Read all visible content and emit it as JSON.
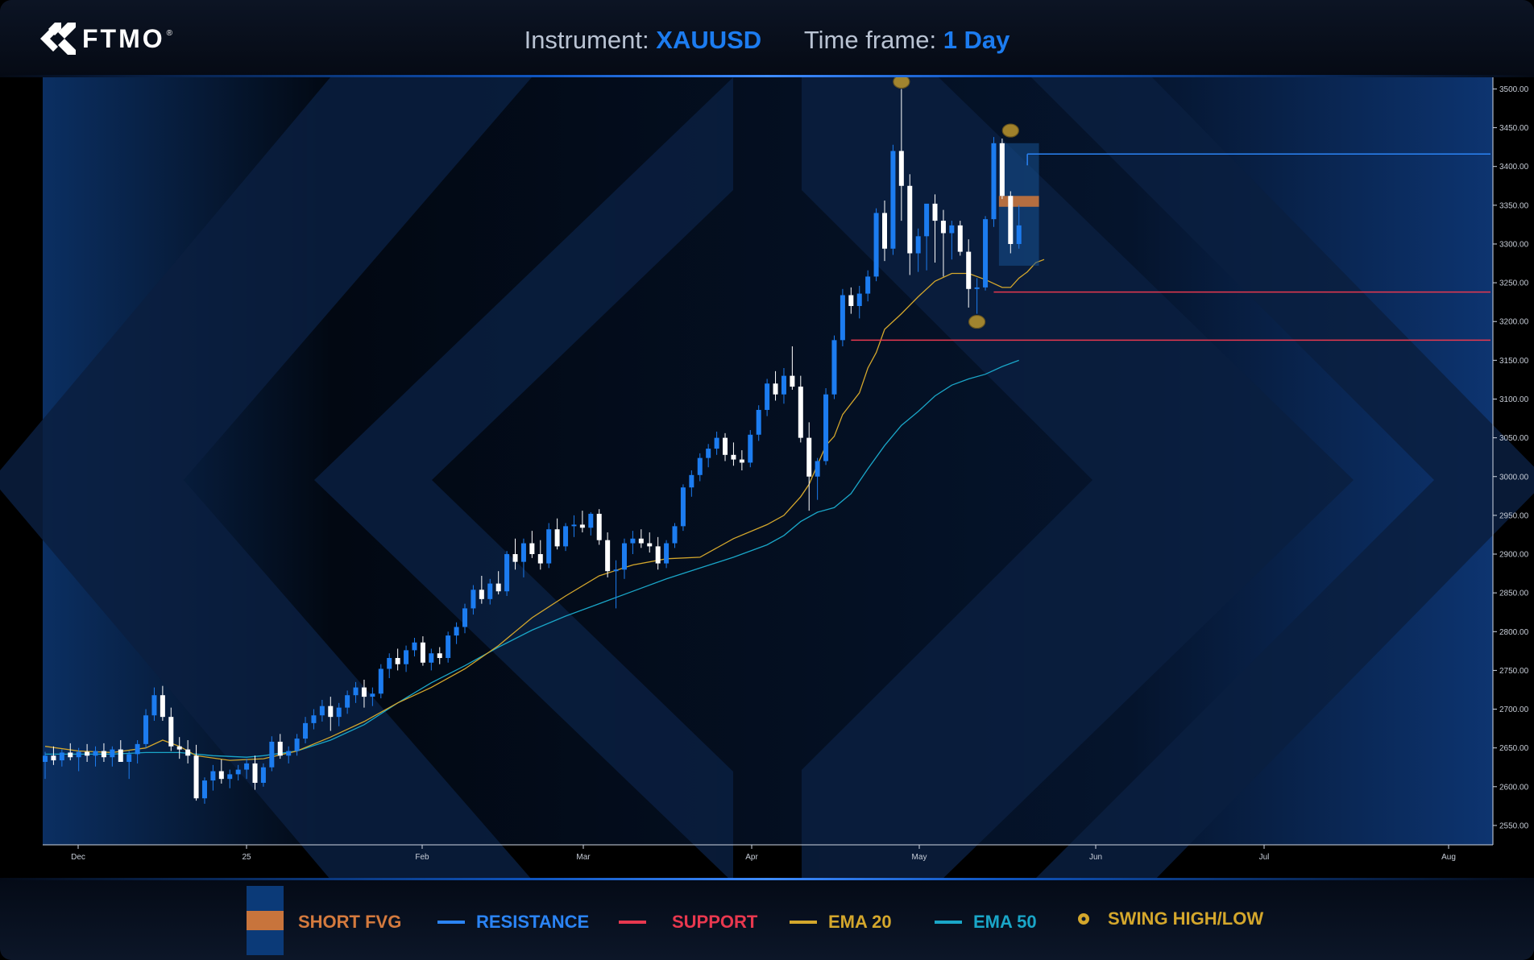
{
  "header": {
    "logo_text": "FTMO",
    "logo_reg": "®",
    "instrument_label": "Instrument:",
    "instrument_value": "XAUUSD",
    "timeframe_label": "Time frame:",
    "timeframe_value": "1 Day"
  },
  "legend": {
    "short_fvg": "SHORT FVG",
    "resistance": "RESISTANCE",
    "support": "SUPPORT",
    "ema20": "EMA 20",
    "ema50": "EMA 50",
    "swing": "SWING HIGH/LOW"
  },
  "colors": {
    "bull": "#1c7cf0",
    "bear": "#ffffff",
    "resistance": "#2b84f5",
    "support": "#e8384f",
    "ema20": "#d4a72c",
    "ema50": "#1aa6c8",
    "swing": "#d4a72c",
    "fvg": "#c8743c",
    "zone": "#16508f"
  },
  "chart_data": {
    "type": "candlestick",
    "title": "",
    "x_tick_labels": [
      "Dec",
      "25",
      "Feb",
      "Mar",
      "Apr",
      "May",
      "Jun",
      "Jul",
      "Aug"
    ],
    "y_ticks": [
      "3500.00",
      "3450.00",
      "3400.00",
      "3350.00",
      "3300.00",
      "3250.00",
      "3200.00",
      "3150.00",
      "3100.00",
      "3050.00",
      "3000.00",
      "2950.00",
      "2900.00",
      "2850.00",
      "2800.00",
      "2750.00",
      "2700.00",
      "2650.00",
      "2600.00",
      "2550.00"
    ],
    "ylim": [
      2525,
      3515
    ],
    "candles": [
      [
        2632,
        2645,
        2610,
        2640
      ],
      [
        2640,
        2652,
        2628,
        2634
      ],
      [
        2634,
        2648,
        2626,
        2644
      ],
      [
        2644,
        2656,
        2634,
        2638
      ],
      [
        2638,
        2650,
        2620,
        2645
      ],
      [
        2645,
        2655,
        2632,
        2640
      ],
      [
        2640,
        2652,
        2626,
        2646
      ],
      [
        2646,
        2656,
        2632,
        2638
      ],
      [
        2638,
        2652,
        2626,
        2648
      ],
      [
        2648,
        2660,
        2636,
        2632
      ],
      [
        2632,
        2646,
        2610,
        2642
      ],
      [
        2642,
        2660,
        2630,
        2655
      ],
      [
        2655,
        2700,
        2650,
        2692
      ],
      [
        2692,
        2728,
        2685,
        2718
      ],
      [
        2718,
        2730,
        2685,
        2690
      ],
      [
        2690,
        2702,
        2646,
        2652
      ],
      [
        2652,
        2664,
        2636,
        2648
      ],
      [
        2648,
        2660,
        2630,
        2640
      ],
      [
        2640,
        2654,
        2582,
        2585
      ],
      [
        2585,
        2612,
        2578,
        2608
      ],
      [
        2608,
        2628,
        2595,
        2620
      ],
      [
        2620,
        2635,
        2604,
        2610
      ],
      [
        2610,
        2622,
        2598,
        2616
      ],
      [
        2616,
        2628,
        2608,
        2622
      ],
      [
        2622,
        2636,
        2610,
        2630
      ],
      [
        2630,
        2640,
        2596,
        2605
      ],
      [
        2605,
        2630,
        2600,
        2625
      ],
      [
        2625,
        2665,
        2620,
        2658
      ],
      [
        2658,
        2668,
        2636,
        2640
      ],
      [
        2640,
        2652,
        2630,
        2646
      ],
      [
        2646,
        2668,
        2640,
        2662
      ],
      [
        2662,
        2690,
        2656,
        2682
      ],
      [
        2682,
        2700,
        2674,
        2692
      ],
      [
        2692,
        2712,
        2684,
        2704
      ],
      [
        2704,
        2716,
        2672,
        2690
      ],
      [
        2690,
        2708,
        2678,
        2702
      ],
      [
        2702,
        2724,
        2694,
        2718
      ],
      [
        2718,
        2735,
        2708,
        2728
      ],
      [
        2728,
        2738,
        2702,
        2716
      ],
      [
        2716,
        2728,
        2704,
        2720
      ],
      [
        2720,
        2758,
        2714,
        2752
      ],
      [
        2752,
        2772,
        2740,
        2766
      ],
      [
        2766,
        2778,
        2750,
        2758
      ],
      [
        2758,
        2782,
        2748,
        2776
      ],
      [
        2776,
        2792,
        2768,
        2786
      ],
      [
        2786,
        2794,
        2756,
        2760
      ],
      [
        2760,
        2778,
        2750,
        2772
      ],
      [
        2772,
        2780,
        2758,
        2766
      ],
      [
        2766,
        2800,
        2760,
        2795
      ],
      [
        2795,
        2812,
        2784,
        2806
      ],
      [
        2806,
        2836,
        2798,
        2830
      ],
      [
        2830,
        2860,
        2822,
        2854
      ],
      [
        2854,
        2872,
        2836,
        2842
      ],
      [
        2842,
        2868,
        2835,
        2862
      ],
      [
        2862,
        2878,
        2848,
        2852
      ],
      [
        2852,
        2904,
        2846,
        2900
      ],
      [
        2900,
        2920,
        2880,
        2890
      ],
      [
        2890,
        2920,
        2870,
        2914
      ],
      [
        2914,
        2930,
        2895,
        2900
      ],
      [
        2900,
        2918,
        2880,
        2888
      ],
      [
        2888,
        2940,
        2882,
        2932
      ],
      [
        2932,
        2946,
        2906,
        2910
      ],
      [
        2910,
        2940,
        2904,
        2936
      ],
      [
        2936,
        2950,
        2922,
        2938
      ],
      [
        2938,
        2956,
        2928,
        2934
      ],
      [
        2934,
        2954,
        2924,
        2952
      ],
      [
        2952,
        2958,
        2912,
        2918
      ],
      [
        2918,
        2928,
        2870,
        2878
      ],
      [
        2878,
        2892,
        2830,
        2880
      ],
      [
        2880,
        2920,
        2868,
        2914
      ],
      [
        2914,
        2930,
        2900,
        2920
      ],
      [
        2920,
        2932,
        2908,
        2914
      ],
      [
        2914,
        2928,
        2902,
        2910
      ],
      [
        2910,
        2922,
        2880,
        2888
      ],
      [
        2888,
        2918,
        2882,
        2914
      ],
      [
        2914,
        2940,
        2908,
        2936
      ],
      [
        2936,
        2990,
        2930,
        2986
      ],
      [
        2986,
        3008,
        2974,
        3002
      ],
      [
        3002,
        3030,
        2994,
        3024
      ],
      [
        3024,
        3042,
        3012,
        3036
      ],
      [
        3036,
        3058,
        3028,
        3050
      ],
      [
        3050,
        3056,
        3020,
        3028
      ],
      [
        3028,
        3044,
        3014,
        3022
      ],
      [
        3022,
        3034,
        3008,
        3018
      ],
      [
        3018,
        3060,
        3012,
        3054
      ],
      [
        3054,
        3092,
        3046,
        3086
      ],
      [
        3086,
        3126,
        3078,
        3120
      ],
      [
        3120,
        3136,
        3098,
        3106
      ],
      [
        3106,
        3140,
        3094,
        3130
      ],
      [
        3130,
        3168,
        3112,
        3116
      ],
      [
        3116,
        3130,
        3044,
        3050
      ],
      [
        3050,
        3070,
        2956,
        3000
      ],
      [
        3000,
        3024,
        2970,
        3020
      ],
      [
        3020,
        3114,
        3015,
        3106
      ],
      [
        3106,
        3182,
        3100,
        3176
      ],
      [
        3176,
        3242,
        3168,
        3234
      ],
      [
        3234,
        3244,
        3210,
        3220
      ],
      [
        3220,
        3246,
        3204,
        3236
      ],
      [
        3236,
        3266,
        3226,
        3258
      ],
      [
        3258,
        3346,
        3252,
        3340
      ],
      [
        3340,
        3356,
        3278,
        3294
      ],
      [
        3294,
        3428,
        3286,
        3420
      ],
      [
        3420,
        3500,
        3330,
        3375
      ],
      [
        3375,
        3390,
        3260,
        3288
      ],
      [
        3288,
        3320,
        3264,
        3310
      ],
      [
        3310,
        3350,
        3266,
        3352
      ],
      [
        3352,
        3364,
        3276,
        3330
      ],
      [
        3330,
        3344,
        3258,
        3314
      ],
      [
        3314,
        3330,
        3280,
        3324
      ],
      [
        3324,
        3330,
        3285,
        3290
      ],
      [
        3290,
        3306,
        3218,
        3242
      ],
      [
        3242,
        3256,
        3210,
        3244
      ],
      [
        3244,
        3336,
        3240,
        3332
      ],
      [
        3332,
        3438,
        3322,
        3430
      ],
      [
        3430,
        3436,
        3358,
        3362
      ],
      [
        3362,
        3368,
        3288,
        3300
      ],
      [
        3300,
        3350,
        3294,
        3324
      ]
    ],
    "ema20": [
      [
        0,
        2652
      ],
      [
        4,
        2646
      ],
      [
        8,
        2644
      ],
      [
        12,
        2650
      ],
      [
        14,
        2660
      ],
      [
        16,
        2652
      ],
      [
        18,
        2640
      ],
      [
        22,
        2634
      ],
      [
        26,
        2636
      ],
      [
        30,
        2646
      ],
      [
        34,
        2664
      ],
      [
        38,
        2684
      ],
      [
        42,
        2708
      ],
      [
        46,
        2728
      ],
      [
        50,
        2752
      ],
      [
        54,
        2782
      ],
      [
        58,
        2818
      ],
      [
        62,
        2846
      ],
      [
        66,
        2872
      ],
      [
        70,
        2886
      ],
      [
        74,
        2894
      ],
      [
        78,
        2896
      ],
      [
        82,
        2920
      ],
      [
        86,
        2938
      ],
      [
        88,
        2950
      ],
      [
        90,
        2974
      ],
      [
        91,
        2990
      ],
      [
        93,
        3040
      ],
      [
        94,
        3052
      ],
      [
        95,
        3080
      ],
      [
        97,
        3108
      ],
      [
        98,
        3140
      ],
      [
        99,
        3160
      ],
      [
        100,
        3190
      ],
      [
        102,
        3210
      ],
      [
        104,
        3232
      ],
      [
        106,
        3252
      ],
      [
        108,
        3262
      ],
      [
        110,
        3262
      ],
      [
        112,
        3254
      ],
      [
        114,
        3244
      ],
      [
        115,
        3244
      ],
      [
        116,
        3256
      ],
      [
        117,
        3264
      ],
      [
        118,
        3276
      ],
      [
        119,
        3280
      ]
    ],
    "ema50": [
      [
        0,
        2642
      ],
      [
        4,
        2642
      ],
      [
        8,
        2642
      ],
      [
        12,
        2644
      ],
      [
        16,
        2644
      ],
      [
        20,
        2640
      ],
      [
        24,
        2638
      ],
      [
        26,
        2640
      ],
      [
        30,
        2646
      ],
      [
        34,
        2660
      ],
      [
        38,
        2680
      ],
      [
        42,
        2708
      ],
      [
        46,
        2734
      ],
      [
        50,
        2756
      ],
      [
        54,
        2780
      ],
      [
        58,
        2802
      ],
      [
        62,
        2820
      ],
      [
        66,
        2836
      ],
      [
        70,
        2852
      ],
      [
        74,
        2868
      ],
      [
        78,
        2882
      ],
      [
        82,
        2896
      ],
      [
        86,
        2912
      ],
      [
        88,
        2924
      ],
      [
        90,
        2942
      ],
      [
        92,
        2954
      ],
      [
        94,
        2960
      ],
      [
        96,
        2978
      ],
      [
        98,
        3010
      ],
      [
        100,
        3040
      ],
      [
        102,
        3066
      ],
      [
        104,
        3084
      ],
      [
        106,
        3104
      ],
      [
        108,
        3118
      ],
      [
        110,
        3126
      ],
      [
        112,
        3132
      ],
      [
        114,
        3142
      ],
      [
        116,
        3150
      ]
    ],
    "resistance": {
      "price": 3416,
      "start": 117,
      "label": "RESISTANCE"
    },
    "support": [
      {
        "price": 3238,
        "start": 113
      },
      {
        "price": 3176,
        "start": 96
      }
    ],
    "swings": [
      {
        "index": 102,
        "price": 3500,
        "type": "high"
      },
      {
        "index": 111,
        "price": 3209,
        "type": "low"
      },
      {
        "index": 115,
        "price": 3437,
        "type": "high"
      }
    ],
    "zone": {
      "start": 114,
      "end": 118,
      "top": 3430,
      "bottom": 3272
    },
    "fvg": {
      "top": 3362,
      "bottom": 3348
    }
  }
}
